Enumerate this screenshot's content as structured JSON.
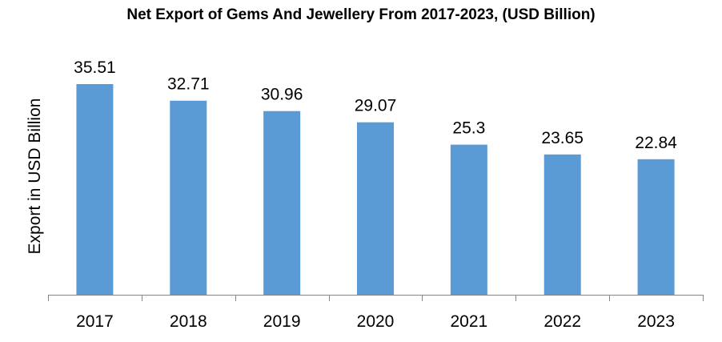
{
  "chart_data": {
    "type": "bar",
    "title": "Net Export of Gems And Jewellery From 2017-2023, (USD Billion)",
    "xlabel": "",
    "ylabel": "Export in USD Billion",
    "categories": [
      "2017",
      "2018",
      "2019",
      "2020",
      "2021",
      "2022",
      "2023"
    ],
    "values": [
      35.51,
      32.71,
      30.96,
      29.07,
      25.3,
      23.65,
      22.84
    ],
    "data_labels": [
      "35.51",
      "32.71",
      "30.96",
      "29.07",
      "25.3",
      "23.65",
      "22.84"
    ],
    "ylim": [
      0,
      40
    ],
    "grid": false,
    "legend": "none",
    "bar_color": "#5B9BD5",
    "axis_color": "#868686"
  }
}
